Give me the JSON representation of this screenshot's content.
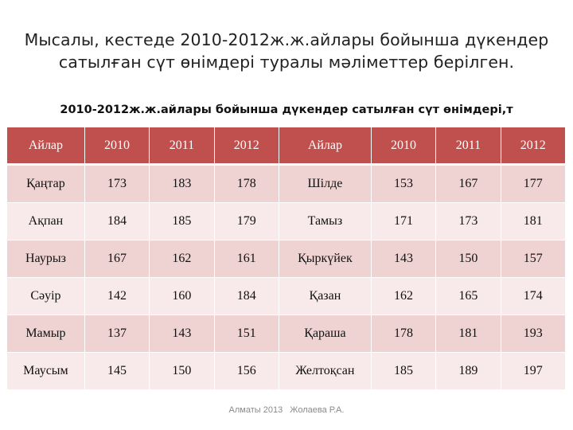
{
  "slide": {
    "heading_line1": "Мысалы, кестеде 2010-2012ж.ж.айлары бойынша дүкендер",
    "heading_line2": "сатылған сүт өнімдері туралы мәліметтер берілген.",
    "table_caption": "2010-2012ж.ж.айлары бойынша дүкендер сатылған сүт өнімдері,т"
  },
  "table": {
    "headers": [
      "Айлар",
      "2010",
      "2011",
      "2012",
      "Айлар",
      "2010",
      "2011",
      "2012"
    ],
    "rows": [
      [
        "Қаңтар",
        "173",
        "183",
        "178",
        "Шілде",
        "153",
        "167",
        "177"
      ],
      [
        "Ақпан",
        "184",
        "185",
        "179",
        "Тамыз",
        "171",
        "173",
        "181"
      ],
      [
        "Наурыз",
        "167",
        "162",
        "161",
        "Қыркүйек",
        "143",
        "150",
        "157"
      ],
      [
        "Сәуір",
        "142",
        "160",
        "184",
        "Қазан",
        "162",
        "165",
        "174"
      ],
      [
        "Мамыр",
        "137",
        "143",
        "151",
        "Қараша",
        "178",
        "181",
        "193"
      ],
      [
        "Маусым",
        "145",
        "150",
        "156",
        "Желтоқсан",
        "185",
        "189",
        "197"
      ]
    ]
  },
  "footer": {
    "place_year": "Алматы 2013",
    "author": "Жолаева Р.А."
  },
  "colors": {
    "header_fill": "#c0504d",
    "row_fill_light": "#efd3d2",
    "row_fill_lighter": "#f8eaea"
  }
}
